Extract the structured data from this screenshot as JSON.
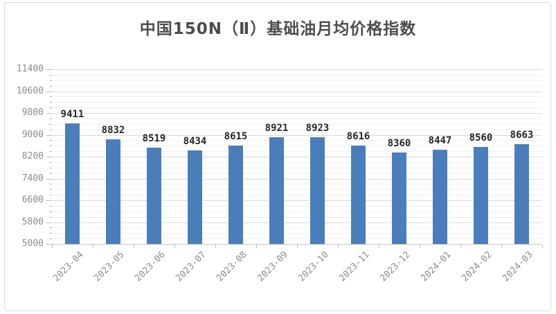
{
  "colors": {
    "bar": "#4a7ebb",
    "title_text": "#4d4d4d",
    "data_label": "#262626",
    "axis_label": "#8c8c8c",
    "grid_major": "#d9d9d9",
    "grid_minor": "#f0f0f0",
    "axis_line": "#c6c6c6",
    "tick_mark": "#bdbdbd",
    "frame_border": "#d8d8d8",
    "background": "#ffffff"
  },
  "chart_data": {
    "type": "bar",
    "title": "中国150N（Ⅱ）基础油月均价格指数",
    "categories": [
      "2023-04",
      "2023-05",
      "2023-06",
      "2023-07",
      "2023-08",
      "2023-09",
      "2023-10",
      "2023-11",
      "2023-12",
      "2024-01",
      "2024-02",
      "2024-03"
    ],
    "values": [
      9411,
      8832,
      8519,
      8434,
      8615,
      8921,
      8923,
      8616,
      8360,
      8447,
      8560,
      8663
    ],
    "xlabel": "",
    "ylabel": "",
    "ylim": [
      5000,
      11400
    ],
    "y_major_unit": 800,
    "y_minor_unit": 200,
    "y_ticks": [
      5000,
      5800,
      6600,
      7400,
      8200,
      9000,
      9800,
      10600,
      11400
    ],
    "grid": true,
    "data_labels": true,
    "legend_position": "none"
  }
}
